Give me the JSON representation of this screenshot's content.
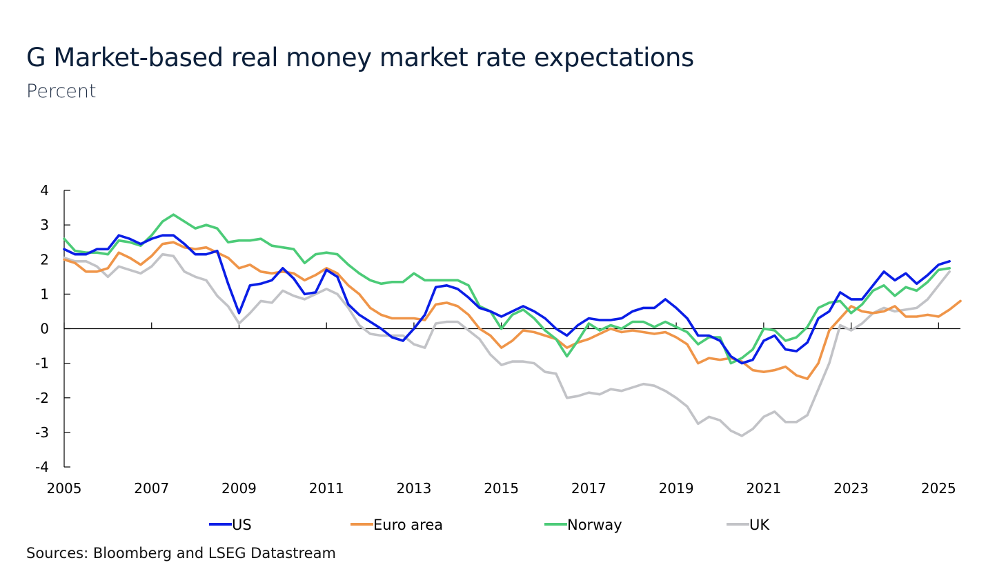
{
  "title": "G Market-based real money market rate expectations",
  "subtitle": "Percent",
  "source": "Sources: Bloomberg and LSEG Datastream",
  "chart_data": {
    "type": "line",
    "title": "G Market-based real money market rate expectations",
    "ylabel": "Percent",
    "xlim": [
      2005,
      2025.5
    ],
    "ylim": [
      -4,
      4
    ],
    "x_ticks": [
      2005,
      2007,
      2009,
      2011,
      2013,
      2015,
      2017,
      2019,
      2021,
      2023,
      2025
    ],
    "y_ticks": [
      4,
      3,
      2,
      1,
      0,
      -1,
      -2,
      -3,
      -4
    ],
    "legend_position": "bottom",
    "x_start": 2005.0,
    "x_step": 0.25,
    "series": [
      {
        "name": "US",
        "color": "#0a1ee6",
        "values": [
          2.3,
          2.15,
          2.15,
          2.3,
          2.3,
          2.7,
          2.6,
          2.45,
          2.6,
          2.7,
          2.7,
          2.45,
          2.15,
          2.15,
          2.25,
          1.3,
          0.45,
          1.25,
          1.3,
          1.4,
          1.75,
          1.45,
          1.0,
          1.05,
          1.7,
          1.5,
          0.7,
          0.4,
          0.2,
          0.0,
          -0.25,
          -0.35,
          0.0,
          0.4,
          1.2,
          1.25,
          1.15,
          0.9,
          0.6,
          0.5,
          0.35,
          0.5,
          0.65,
          0.5,
          0.3,
          0.0,
          -0.2,
          0.1,
          0.3,
          0.25,
          0.25,
          0.3,
          0.5,
          0.6,
          0.6,
          0.85,
          0.6,
          0.3,
          -0.2,
          -0.2,
          -0.35,
          -0.8,
          -1.0,
          -0.9,
          -0.35,
          -0.2,
          -0.6,
          -0.65,
          -0.4,
          0.3,
          0.5,
          1.05,
          0.85,
          0.85,
          1.25,
          1.65,
          1.4,
          1.6,
          1.3,
          1.55,
          1.85,
          1.95
        ]
      },
      {
        "name": "Euro area",
        "color": "#ef9549",
        "values": [
          2.0,
          1.9,
          1.65,
          1.65,
          1.75,
          2.2,
          2.05,
          1.85,
          2.1,
          2.45,
          2.5,
          2.35,
          2.3,
          2.35,
          2.2,
          2.05,
          1.75,
          1.85,
          1.65,
          1.6,
          1.65,
          1.6,
          1.4,
          1.55,
          1.75,
          1.6,
          1.25,
          1.0,
          0.6,
          0.4,
          0.3,
          0.3,
          0.3,
          0.25,
          0.7,
          0.75,
          0.65,
          0.4,
          0.0,
          -0.2,
          -0.55,
          -0.35,
          -0.05,
          -0.1,
          -0.2,
          -0.3,
          -0.55,
          -0.4,
          -0.3,
          -0.15,
          0.0,
          -0.1,
          -0.05,
          -0.1,
          -0.15,
          -0.1,
          -0.25,
          -0.45,
          -1.0,
          -0.85,
          -0.9,
          -0.85,
          -0.95,
          -1.2,
          -1.25,
          -1.2,
          -1.1,
          -1.35,
          -1.45,
          -1.0,
          -0.05,
          0.3,
          0.65,
          0.5,
          0.45,
          0.5,
          0.65,
          0.35,
          0.35,
          0.4,
          0.35,
          0.55,
          0.8
        ]
      },
      {
        "name": "Norway",
        "color": "#4ccb78",
        "values": [
          2.6,
          2.25,
          2.2,
          2.2,
          2.15,
          2.55,
          2.5,
          2.4,
          2.7,
          3.1,
          3.3,
          3.1,
          2.9,
          3.0,
          2.9,
          2.5,
          2.55,
          2.55,
          2.6,
          2.4,
          2.35,
          2.3,
          1.9,
          2.15,
          2.2,
          2.15,
          1.85,
          1.6,
          1.4,
          1.3,
          1.35,
          1.35,
          1.6,
          1.4,
          1.4,
          1.4,
          1.4,
          1.25,
          0.65,
          0.5,
          0.0,
          0.4,
          0.55,
          0.3,
          -0.05,
          -0.3,
          -0.8,
          -0.35,
          0.15,
          -0.05,
          0.1,
          0.0,
          0.2,
          0.2,
          0.05,
          0.2,
          0.05,
          -0.1,
          -0.45,
          -0.25,
          -0.25,
          -1.0,
          -0.85,
          -0.6,
          0.0,
          -0.05,
          -0.35,
          -0.25,
          0.05,
          0.6,
          0.75,
          0.8,
          0.45,
          0.7,
          1.1,
          1.25,
          0.95,
          1.2,
          1.1,
          1.35,
          1.7,
          1.75
        ]
      },
      {
        "name": "UK",
        "color": "#c2c3c7",
        "values": [
          2.05,
          1.95,
          1.95,
          1.8,
          1.5,
          1.8,
          1.7,
          1.6,
          1.8,
          2.15,
          2.1,
          1.65,
          1.5,
          1.4,
          0.95,
          0.65,
          0.15,
          0.45,
          0.8,
          0.75,
          1.1,
          0.95,
          0.85,
          1.0,
          1.15,
          1.0,
          0.6,
          0.1,
          -0.15,
          -0.2,
          -0.2,
          -0.2,
          -0.45,
          -0.55,
          0.15,
          0.2,
          0.2,
          -0.05,
          -0.3,
          -0.75,
          -1.05,
          -0.95,
          -0.95,
          -1.0,
          -1.25,
          -1.3,
          -2.0,
          -1.95,
          -1.85,
          -1.9,
          -1.75,
          -1.8,
          -1.7,
          -1.6,
          -1.65,
          -1.8,
          -2.0,
          -2.25,
          -2.75,
          -2.55,
          -2.65,
          -2.95,
          -3.1,
          -2.9,
          -2.55,
          -2.4,
          -2.7,
          -2.7,
          -2.5,
          -1.75,
          -1.0,
          0.1,
          -0.05,
          0.15,
          0.45,
          0.6,
          0.5,
          0.55,
          0.6,
          0.85,
          1.25,
          1.65
        ]
      }
    ]
  }
}
